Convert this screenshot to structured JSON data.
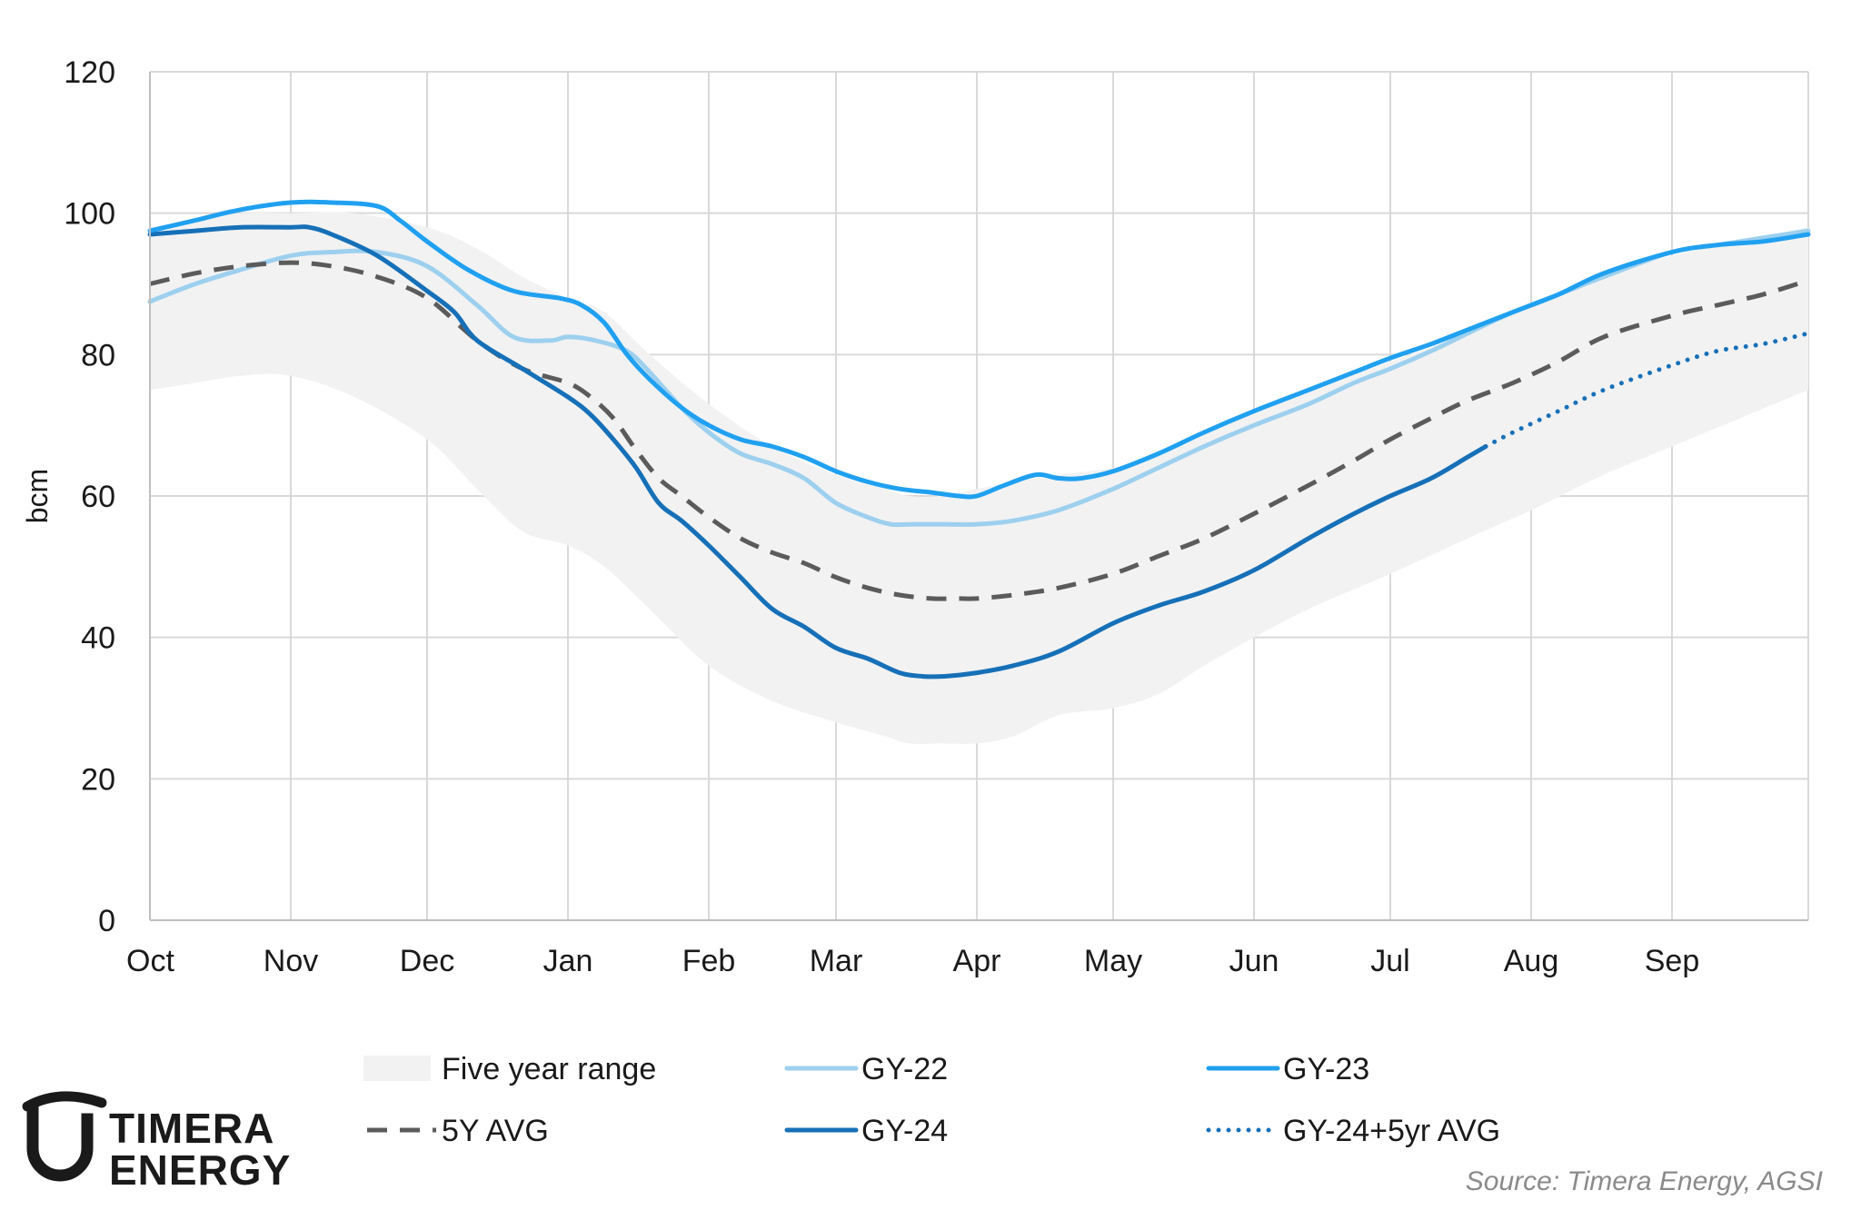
{
  "chart_data": {
    "type": "line",
    "title": "",
    "xlabel": "",
    "ylabel": "bcm",
    "ylim": [
      0,
      120
    ],
    "yticks": [
      0,
      20,
      40,
      60,
      80,
      100,
      120
    ],
    "xlim": [
      0,
      365
    ],
    "months": [
      {
        "label": "Oct",
        "day": 0
      },
      {
        "label": "Nov",
        "day": 31
      },
      {
        "label": "Dec",
        "day": 61
      },
      {
        "label": "Jan",
        "day": 92
      },
      {
        "label": "Feb",
        "day": 123
      },
      {
        "label": "Mar",
        "day": 151
      },
      {
        "label": "Apr",
        "day": 182
      },
      {
        "label": "May",
        "day": 212
      },
      {
        "label": "Jun",
        "day": 243
      },
      {
        "label": "Jul",
        "day": 273
      },
      {
        "label": "Aug",
        "day": 304
      },
      {
        "label": "Sep",
        "day": 335
      }
    ],
    "grid": true,
    "range": {
      "name": "Five year range",
      "color": "#f2f2f2",
      "x": [
        0,
        10,
        20,
        31,
        45,
        61,
        72,
        82,
        92,
        100,
        110,
        123,
        137,
        151,
        162,
        167,
        174,
        182,
        190,
        200,
        212,
        222,
        232,
        243,
        255,
        273,
        290,
        304,
        320,
        335,
        350,
        365
      ],
      "upper": [
        98,
        99,
        100,
        100,
        100,
        98,
        95,
        91,
        88,
        86,
        80,
        73,
        67,
        63,
        61,
        60,
        60,
        61,
        62,
        63,
        64,
        66,
        69,
        72,
        75,
        79,
        83,
        87,
        91,
        94,
        96,
        98
      ],
      "lower": [
        75,
        76,
        77,
        77,
        74,
        68,
        61,
        55,
        53,
        50,
        44,
        36,
        31,
        28,
        26,
        25,
        25,
        25,
        26,
        29,
        30,
        32,
        36,
        40,
        44,
        49,
        54,
        58,
        63,
        67,
        71,
        75
      ]
    },
    "series": [
      {
        "name": "GY-22",
        "color": "#9dd0ef",
        "style": "solid",
        "x": [
          0,
          10,
          20,
          31,
          40,
          50,
          61,
          72,
          80,
          88,
          92,
          98,
          105,
          110,
          117,
          123,
          130,
          137,
          144,
          151,
          158,
          163,
          168,
          175,
          182,
          190,
          200,
          212,
          222,
          232,
          243,
          255,
          265,
          273,
          282,
          290,
          300,
          310,
          320,
          335,
          345,
          355,
          365
        ],
        "values": [
          87.5,
          90,
          92,
          94,
          94.5,
          94.5,
          92.5,
          87,
          82.5,
          82,
          82.5,
          82,
          80.5,
          77.5,
          72.5,
          69,
          66,
          64.5,
          62.5,
          59,
          57,
          56,
          56,
          56,
          56,
          56.5,
          58,
          61,
          64,
          67,
          70,
          73,
          76,
          78,
          80.5,
          83,
          86,
          88.5,
          91,
          94.5,
          95.5,
          96.5,
          97.5
        ]
      },
      {
        "name": "GY-23",
        "color": "#20a0f0",
        "style": "solid",
        "x": [
          0,
          10,
          20,
          31,
          40,
          50,
          55,
          61,
          70,
          80,
          90,
          95,
          100,
          105,
          110,
          117,
          123,
          130,
          137,
          144,
          151,
          158,
          165,
          172,
          178,
          182,
          188,
          195,
          200,
          205,
          212,
          222,
          232,
          243,
          255,
          265,
          273,
          282,
          290,
          300,
          310,
          320,
          335,
          345,
          355,
          365
        ],
        "values": [
          97.5,
          99,
          100.5,
          101.5,
          101.5,
          101,
          99,
          96,
          92,
          89,
          88,
          87,
          84.5,
          80,
          76.5,
          72.5,
          70,
          68,
          67,
          65.5,
          63.5,
          62,
          61,
          60.5,
          60,
          60,
          61.5,
          63,
          62.5,
          62.5,
          63.5,
          66,
          69,
          72,
          75,
          77.5,
          79.5,
          81.5,
          83.5,
          86,
          88.5,
          91.5,
          94.5,
          95.5,
          96,
          97
        ]
      },
      {
        "name": "GY-24",
        "color": "#1670b8",
        "style": "solid",
        "x": [
          0,
          10,
          20,
          31,
          35,
          40,
          50,
          61,
          67,
          72,
          82,
          92,
          97,
          102,
          107,
          112,
          117,
          123,
          130,
          137,
          144,
          151,
          158,
          165,
          170,
          175,
          182,
          190,
          200,
          212,
          222,
          232,
          243,
          255,
          265,
          273,
          282,
          290,
          294
        ],
        "values": [
          97,
          97.5,
          98,
          98,
          98,
          97,
          94,
          89,
          86,
          82,
          78,
          74,
          71.5,
          68,
          64,
          59,
          56.5,
          53,
          48.5,
          44,
          41.5,
          38.5,
          37,
          35,
          34.5,
          34.5,
          35,
          36,
          38,
          42,
          44.5,
          46.5,
          49.5,
          54,
          57.5,
          60,
          62.5,
          65.5,
          67
        ]
      },
      {
        "name": "GY-24+5yr AVG",
        "color": "#1670b8",
        "style": "dotted",
        "x": [
          294,
          300,
          310,
          320,
          335,
          345,
          355,
          365
        ],
        "values": [
          67,
          69,
          72,
          75,
          78.5,
          80.5,
          81.5,
          83
        ]
      },
      {
        "name": "5Y AVG",
        "color": "#5b5b5b",
        "style": "dashed",
        "x": [
          0,
          10,
          20,
          31,
          40,
          50,
          61,
          72,
          82,
          92,
          97,
          102,
          107,
          112,
          117,
          123,
          130,
          137,
          144,
          151,
          158,
          165,
          172,
          178,
          182,
          190,
          200,
          212,
          222,
          232,
          243,
          255,
          265,
          273,
          282,
          290,
          300,
          310,
          320,
          335,
          345,
          355,
          365
        ],
        "values": [
          90,
          91.5,
          92.5,
          93,
          92.5,
          91,
          88,
          82,
          78,
          76,
          74,
          71,
          66.5,
          62.5,
          60,
          57,
          54,
          52,
          50.5,
          48.5,
          47,
          46,
          45.5,
          45.5,
          45.5,
          46,
          47,
          49,
          51.5,
          54,
          57.5,
          61.5,
          65,
          68,
          71,
          73.5,
          76,
          79,
          82.5,
          85.5,
          87,
          88.5,
          90.5
        ]
      }
    ],
    "legend": [
      {
        "label": "Five year range",
        "kind": "range"
      },
      {
        "label": "GY-22",
        "kind": "line",
        "series": "GY-22"
      },
      {
        "label": "GY-23",
        "kind": "line",
        "series": "GY-23"
      },
      {
        "label": "5Y AVG",
        "kind": "line",
        "series": "5Y AVG"
      },
      {
        "label": "GY-24",
        "kind": "line",
        "series": "GY-24"
      },
      {
        "label": "GY-24+5yr AVG",
        "kind": "line",
        "series": "GY-24+5yr AVG"
      }
    ],
    "legend_position": "bottom"
  },
  "source": "Source: Timera Energy, AGSI",
  "logo": {
    "line1": "TIMERA",
    "line2": "ENERGY"
  }
}
